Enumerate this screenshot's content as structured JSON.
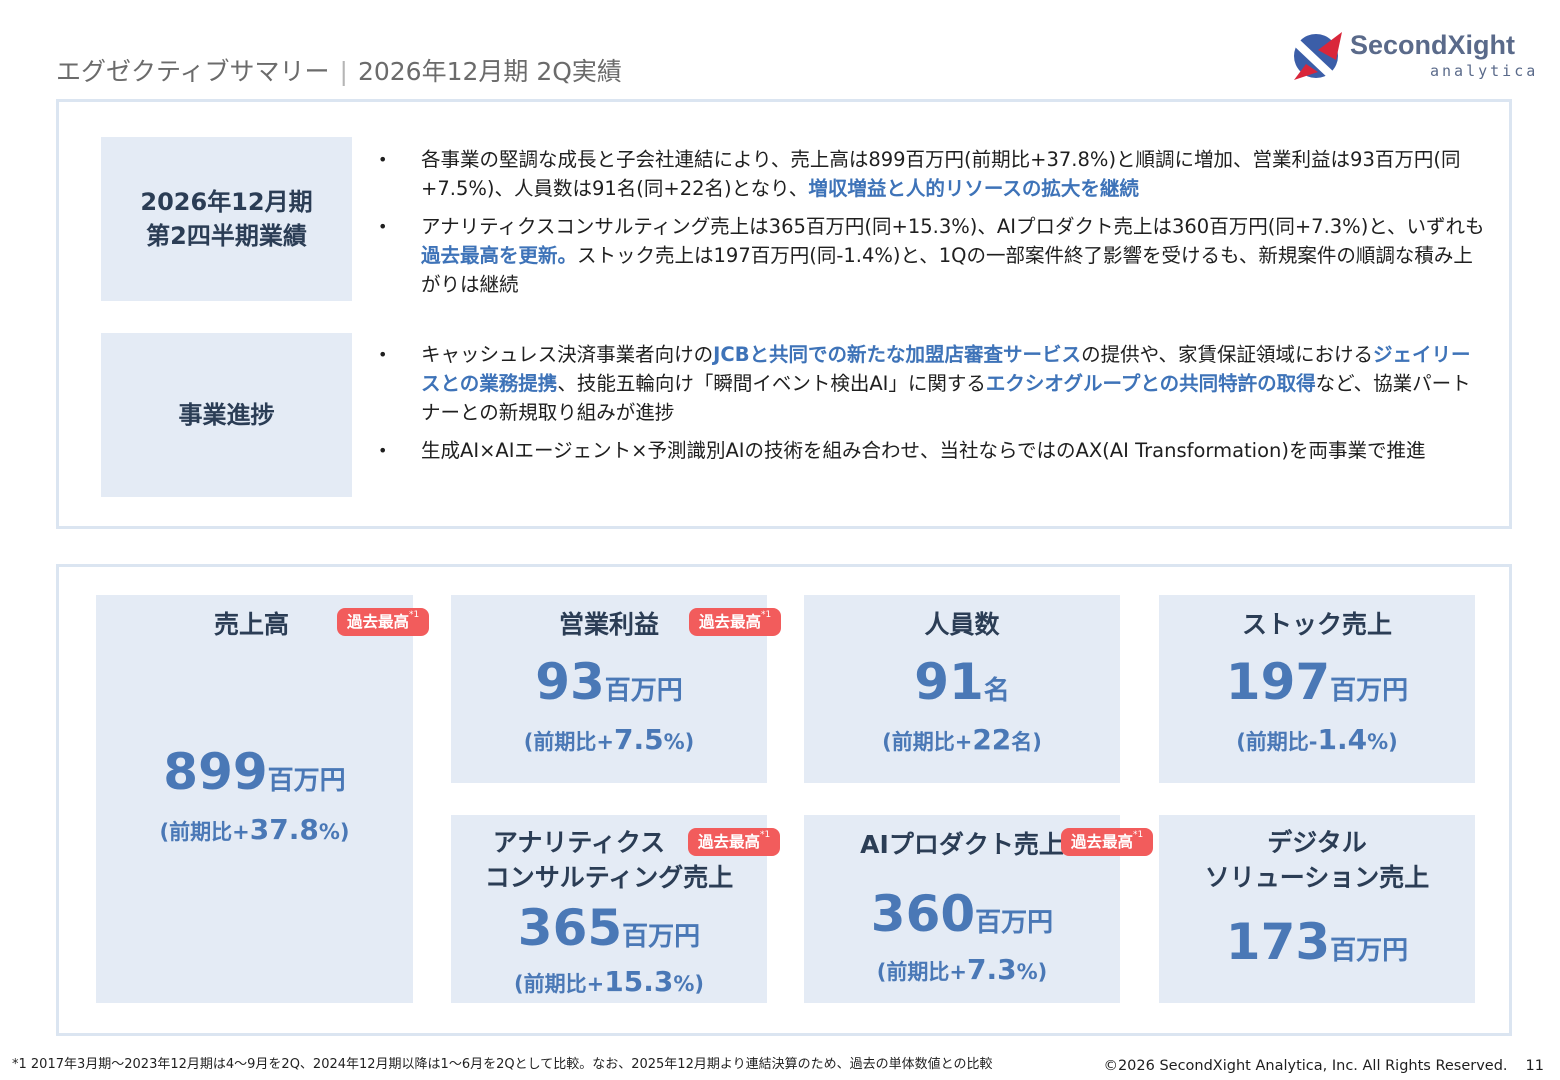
{
  "header": {
    "section": "エグゼクティブサマリー",
    "separator": "|",
    "period": "2026年12月期 2Q実績"
  },
  "logo": {
    "name_part1": "Second",
    "name_part2": "Xight",
    "sub": "analytica",
    "colors": {
      "blue": "#3b5ea8",
      "red": "#d9263a",
      "text": "#5a6a8a"
    }
  },
  "summary": {
    "results": {
      "label_line1": "2026年12月期",
      "label_line2": "第2四半期業績",
      "bullets": [
        [
          {
            "t": "各事業の堅調な成長と子会社連結により、売上高は899百万円(前期比+37.8%)と順調に増加、営業利益は93百万円(同+7.5%)、人員数は91名(同+22名)となり、"
          },
          {
            "t": "増収増益と人的リソースの拡大を継続",
            "hl": true
          }
        ],
        [
          {
            "t": "アナリティクスコンサルティング売上は365百万円(同+15.3%)、AIプロダクト売上は360百万円(同+7.3%)と、いずれも"
          },
          {
            "t": "過去最高を更新。",
            "hl": true
          },
          {
            "t": "ストック売上は197百万円(同-1.4%)と、1Qの一部案件終了影響を受けるも、新規案件の順調な積み上がりは継続"
          }
        ]
      ]
    },
    "progress": {
      "label": "事業進捗",
      "bullets": [
        [
          {
            "t": "キャッシュレス決済事業者向けの"
          },
          {
            "t": "JCBと共同での新たな加盟店審査サービス",
            "hl": true
          },
          {
            "t": "の提供や、家賃保証領域における"
          },
          {
            "t": "ジェイリースとの業務提携",
            "hl": true
          },
          {
            "t": "、技能五輪向け「瞬間イベント検出AI」に関する"
          },
          {
            "t": "エクシオグループとの共同特許の取得",
            "hl": true
          },
          {
            "t": "など、協業パートナーとの新規取り組みが進捗"
          }
        ],
        [
          {
            "t": "生成AI×AIエージェント×予測識別AIの技術を組み合わせ、当社ならではのAX(AI Transformation)を両事業で推進"
          }
        ]
      ]
    }
  },
  "kpis": {
    "badge_text": "過去最高",
    "badge_mark": "*1",
    "badge_color": "#f25c5c",
    "value_color": "#4a78b6",
    "revenue": {
      "title": "売上高",
      "value": "899",
      "unit": "百万円",
      "yoy_prefix": "(前期比+",
      "yoy_value": "37.8",
      "yoy_suffix": "%)"
    },
    "operating_profit": {
      "title": "営業利益",
      "value": "93",
      "unit": "百万円",
      "yoy_prefix": "(前期比+",
      "yoy_value": "7.5",
      "yoy_suffix": "%)"
    },
    "headcount": {
      "title": "人員数",
      "value": "91",
      "unit": "名",
      "yoy_prefix": "(前期比+",
      "yoy_value": "22",
      "yoy_suffix": "名)"
    },
    "stock_revenue": {
      "title": "ストック売上",
      "value": "197",
      "unit": "百万円",
      "yoy_prefix": "(前期比-",
      "yoy_value": "1.4",
      "yoy_suffix": "%)"
    },
    "analytics_consulting": {
      "title_line1": "アナリティクス",
      "title_line2": "コンサルティング売上",
      "value": "365",
      "unit": "百万円",
      "yoy_prefix": "(前期比+",
      "yoy_value": "15.3",
      "yoy_suffix": "%)"
    },
    "ai_product": {
      "title": "AIプロダクト売上",
      "value": "360",
      "unit": "百万円",
      "yoy_prefix": "(前期比+",
      "yoy_value": "7.3",
      "yoy_suffix": "%)"
    },
    "digital_solution": {
      "title_line1": "デジタル",
      "title_line2": "ソリューション売上",
      "value": "173",
      "unit": "百万円"
    }
  },
  "footer": {
    "footnote": "*1 2017年3月期～2023年12月期は4～9月を2Q、2024年12月期以降は1～6月を2Qとして比較。なお、2025年12月期より連結決算のため、過去の単体数値との比較",
    "copyright": "©2026 SecondXight Analytica, Inc. All Rights Reserved.",
    "page": "11"
  }
}
